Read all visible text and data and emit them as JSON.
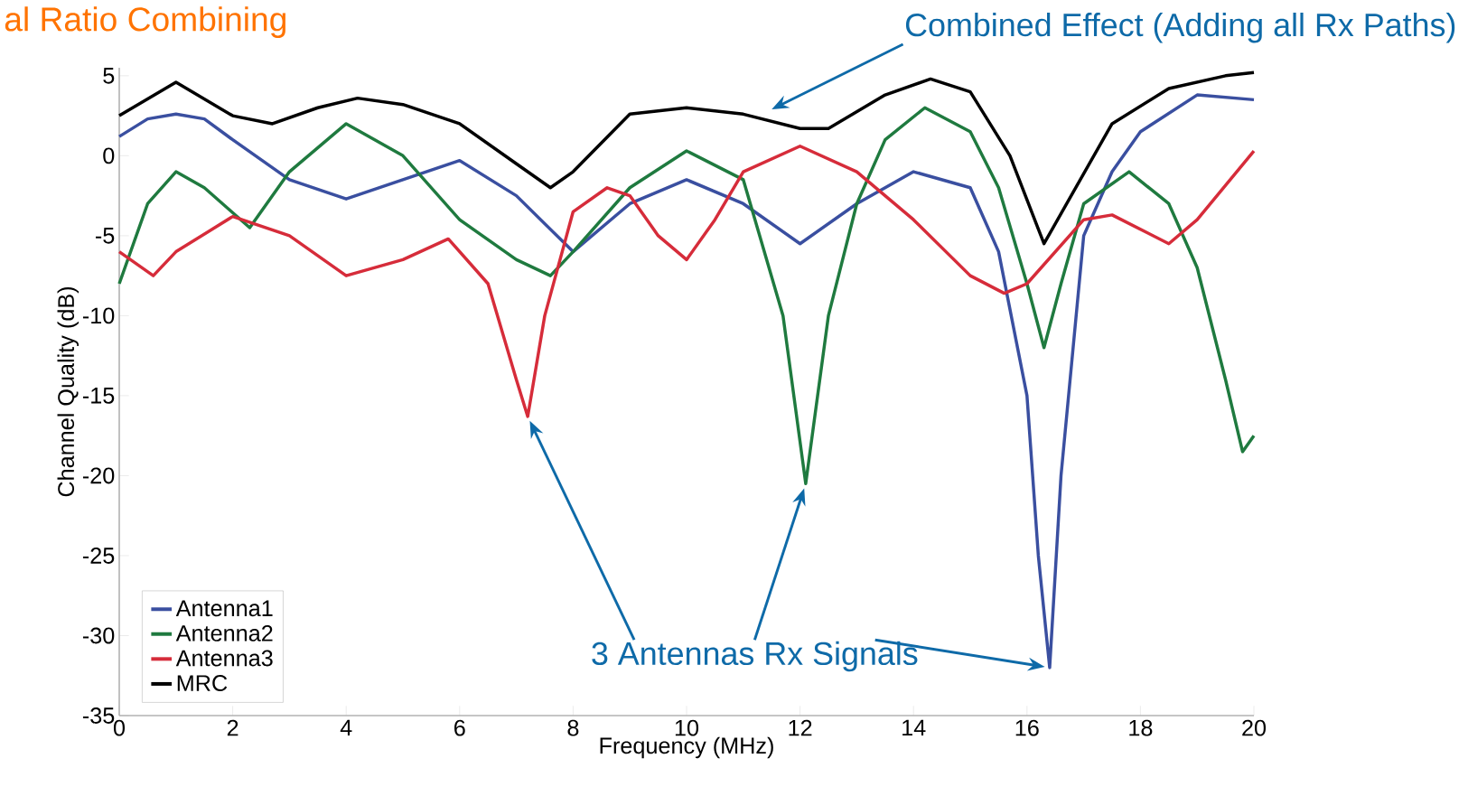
{
  "chart_data": {
    "type": "line",
    "title": "al Ratio Combining",
    "xlabel": "Frequency (MHz)",
    "ylabel": "Channel Quality (dB)",
    "xlim": [
      0,
      20
    ],
    "ylim": [
      -35,
      5.5
    ],
    "xticks": [
      0,
      2,
      4,
      6,
      8,
      10,
      12,
      14,
      16,
      18,
      20
    ],
    "yticks": [
      5,
      0,
      -5,
      -10,
      -15,
      -20,
      -25,
      -30,
      -35
    ],
    "grid": false,
    "legend": "bottom left",
    "line_style": "solid",
    "marker": "none",
    "annotations": [
      "Combined Effect (Adding all Rx Paths)",
      "3 Antennas Rx Signals"
    ],
    "series": [
      {
        "name": "Antenna1",
        "color": "#3a4fa0",
        "x": [
          0,
          0.5,
          1,
          1.5,
          2,
          3,
          4,
          5,
          6,
          7,
          8,
          9,
          10,
          11,
          12,
          13,
          14,
          15,
          15.5,
          16,
          16.2,
          16.4,
          16.6,
          17,
          17.5,
          18,
          19,
          20
        ],
        "values": [
          1.2,
          2.3,
          2.6,
          2.3,
          1,
          -1.5,
          -2.7,
          -1.5,
          -0.3,
          -2.5,
          -6,
          -3,
          -1.5,
          -3,
          -5.5,
          -3,
          -1,
          -2,
          -6,
          -15,
          -25,
          -32,
          -20,
          -5,
          -1,
          1.5,
          3.8,
          3.5
        ]
      },
      {
        "name": "Antenna2",
        "color": "#1f7a3f",
        "x": [
          0,
          0.5,
          1,
          1.5,
          2.3,
          3,
          4,
          5,
          6,
          7,
          7.6,
          8,
          9,
          10,
          11,
          11.7,
          12.1,
          12.5,
          13,
          13.5,
          14.2,
          15,
          15.5,
          16,
          16.3,
          16.6,
          17,
          17.8,
          18.5,
          19,
          19.5,
          19.8,
          20
        ],
        "values": [
          -8,
          -3,
          -1,
          -2,
          -4.5,
          -1,
          2,
          0,
          -4,
          -6.5,
          -7.5,
          -6,
          -2,
          0.3,
          -1.5,
          -10,
          -20.5,
          -10,
          -3,
          1,
          3,
          1.5,
          -2,
          -8,
          -12,
          -8,
          -3,
          -1,
          -3,
          -7,
          -14,
          -18.5,
          -17.5
        ]
      },
      {
        "name": "Antenna3",
        "color": "#d62c3a",
        "x": [
          0,
          0.6,
          1,
          2,
          3,
          4,
          5,
          5.8,
          6.5,
          7,
          7.2,
          7.5,
          8,
          8.6,
          9,
          9.5,
          10,
          10.5,
          11,
          12,
          13,
          14,
          15,
          15.6,
          16,
          17,
          17.5,
          18.5,
          19,
          20
        ],
        "values": [
          -6,
          -7.5,
          -6,
          -3.8,
          -5,
          -7.5,
          -6.5,
          -5.2,
          -8,
          -14,
          -16.3,
          -10,
          -3.5,
          -2,
          -2.5,
          -5,
          -6.5,
          -4,
          -1,
          0.6,
          -1,
          -4,
          -7.5,
          -8.6,
          -8,
          -4,
          -3.7,
          -5.5,
          -4,
          0.3
        ]
      },
      {
        "name": "MRC",
        "color": "#000000",
        "x": [
          0,
          1,
          2,
          2.7,
          3.5,
          4.2,
          5,
          6,
          7,
          7.6,
          8,
          9,
          10,
          11,
          12,
          12.5,
          13.5,
          14.3,
          15,
          15.7,
          16.3,
          16.7,
          17.5,
          18.5,
          19.5,
          20
        ],
        "values": [
          2.5,
          4.6,
          2.5,
          2,
          3,
          3.6,
          3.2,
          2,
          -0.5,
          -2,
          -1,
          2.6,
          3,
          2.6,
          1.7,
          1.7,
          3.8,
          4.8,
          4,
          0,
          -5.5,
          -3,
          2,
          4.2,
          5,
          5.2
        ]
      }
    ]
  }
}
